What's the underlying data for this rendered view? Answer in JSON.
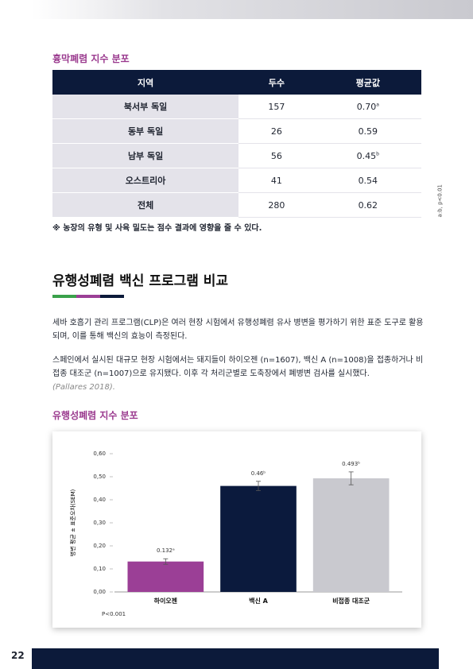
{
  "table_section": {
    "title": "흉막폐렴 지수 분포",
    "table": {
      "header": [
        "지역",
        "두수",
        "평균값"
      ],
      "rows": [
        {
          "cells": [
            "북서부 독일",
            "157",
            "0.70"
          ],
          "sup": "a"
        },
        {
          "cells": [
            "동부 독일",
            "26",
            "0.59"
          ]
        },
        {
          "cells": [
            "남부 독일",
            "56",
            "0.45"
          ],
          "sup": "b"
        },
        {
          "cells": [
            "오스트리아",
            "41",
            "0.54"
          ]
        },
        {
          "cells": [
            "전체",
            "280",
            "0.62"
          ]
        }
      ]
    },
    "side_note": "a:b, p<0.01",
    "note": "※ 농장의 유형 및 사육 밀도는 점수 결과에 영향을 줄 수 있다."
  },
  "section": {
    "heading": "유행성폐렴 백신 프로그램 비교",
    "paragraphs": [
      "세바 호흡기 관리 프로그램(CLP)은 여러 현장 시험에서 유행성폐렴 유사 병변을 평가하기 위한 표준 도구로 활용되며, 이를 통해 백신의 효능이 측정된다.",
      "스페인에서 실시된 대규모 현장 시험에서는 돼지들이 하이오젠 (n=1607), 백신 A (n=1008)을 접종하거나 비접종 대조군 (n=1007)으로 유지됐다. 이후 각 처리군별로 도축장에서 폐병변 검사를 실시했다."
    ],
    "citation": "(Pallares 2018).",
    "chart_title": "유행성폐렴 지수 분포"
  },
  "chart_data": {
    "type": "bar",
    "y_label": "병변 평균 ± 표준오차(SEM)",
    "categories": [
      "하이오젠",
      "백신 A",
      "비접종 대조군"
    ],
    "values": [
      0.132,
      0.46,
      0.493
    ],
    "errors": [
      0.012,
      0.02,
      0.028
    ],
    "value_labels": [
      "0.132ᵃ",
      "0.46ᵇ",
      "0.493ᵇ"
    ],
    "colors": [
      "#9b3f96",
      "#0b1a3d",
      "#c9c9cf"
    ],
    "ylim": [
      0,
      0.6
    ],
    "yticks": [
      {
        "value": 0,
        "label": "0,00"
      },
      {
        "value": 0.1,
        "label": "0,10"
      },
      {
        "value": 0.2,
        "label": "0,20"
      },
      {
        "value": 0.3,
        "label": "0,30"
      },
      {
        "value": 0.4,
        "label": "0,40"
      },
      {
        "value": 0.5,
        "label": "0,50"
      },
      {
        "value": 0.6,
        "label": "0,60"
      }
    ],
    "footnote": "P<0.001"
  },
  "page_number": "22"
}
